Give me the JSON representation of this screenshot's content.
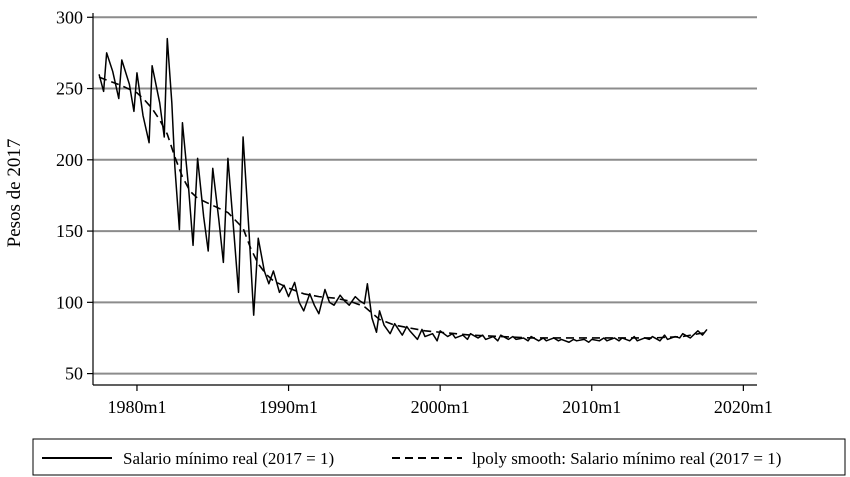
{
  "chart_data": {
    "type": "line",
    "title": "",
    "xlabel": "",
    "ylabel": "Pesos de 2017",
    "xlim": [
      1977.1,
      2020.9
    ],
    "ylim": [
      42,
      303
    ],
    "x_ticks": [
      1980,
      1990,
      2000,
      2010,
      2020
    ],
    "x_tick_labels": [
      "1980m1",
      "1990m1",
      "2000m1",
      "2010m1",
      "2020m1"
    ],
    "y_ticks": [
      50,
      100,
      150,
      200,
      250,
      300
    ],
    "y_tick_labels": [
      "50",
      "100",
      "150",
      "200",
      "250",
      "300"
    ],
    "grid": "horizontal",
    "legend_position": "bottom",
    "series": [
      {
        "name": "Salario mínimo real (2017 = 1)",
        "style": "solid",
        "color": "#000000",
        "x": [
          1977.5,
          1977.8,
          1978.0,
          1978.4,
          1978.8,
          1979.0,
          1979.5,
          1979.8,
          1980.0,
          1980.4,
          1980.8,
          1981.0,
          1981.5,
          1981.8,
          1982.0,
          1982.3,
          1982.5,
          1982.8,
          1983.0,
          1983.4,
          1983.7,
          1984.0,
          1984.4,
          1984.7,
          1985.0,
          1985.4,
          1985.7,
          1986.0,
          1986.4,
          1986.7,
          1987.0,
          1987.4,
          1987.7,
          1988.0,
          1988.4,
          1988.7,
          1989.0,
          1989.4,
          1989.7,
          1990.0,
          1990.4,
          1990.7,
          1991.0,
          1991.4,
          1991.7,
          1992.0,
          1992.4,
          1992.7,
          1993.0,
          1993.4,
          1993.7,
          1994.0,
          1994.4,
          1994.7,
          1995.0,
          1995.2,
          1995.5,
          1995.8,
          1996.0,
          1996.3,
          1996.7,
          1997.0,
          1997.5,
          1997.8,
          1998.0,
          1998.5,
          1998.8,
          1999.0,
          1999.5,
          1999.8,
          2000.0,
          2000.5,
          2000.8,
          2001.0,
          2001.5,
          2001.8,
          2002.0,
          2002.5,
          2002.8,
          2003.0,
          2003.5,
          2003.8,
          2004.0,
          2004.5,
          2004.8,
          2005.0,
          2005.5,
          2005.8,
          2006.0,
          2006.5,
          2006.8,
          2007.0,
          2007.5,
          2007.8,
          2008.0,
          2008.5,
          2008.8,
          2009.0,
          2009.5,
          2009.8,
          2010.0,
          2010.5,
          2010.8,
          2011.0,
          2011.5,
          2011.8,
          2012.0,
          2012.5,
          2012.8,
          2013.0,
          2013.5,
          2013.8,
          2014.0,
          2014.5,
          2014.8,
          2015.0,
          2015.5,
          2015.8,
          2016.0,
          2016.5,
          2016.8,
          2017.0,
          2017.3,
          2017.6
        ],
        "values": [
          260,
          248,
          275,
          262,
          243,
          270,
          253,
          234,
          261,
          231,
          212,
          266,
          240,
          216,
          285,
          240,
          195,
          151,
          226,
          181,
          140,
          201,
          160,
          136,
          194,
          158,
          128,
          201,
          148,
          107,
          216,
          148,
          91,
          145,
          122,
          113,
          122,
          107,
          112,
          104,
          114,
          100,
          94,
          106,
          98,
          92,
          109,
          100,
          98,
          105,
          101,
          98,
          104,
          101,
          99,
          113,
          89,
          79,
          94,
          84,
          78,
          85,
          77,
          83,
          80,
          74,
          81,
          76,
          78,
          73,
          80,
          76,
          78,
          75,
          77,
          74,
          78,
          75,
          77,
          74,
          76,
          73,
          77,
          74,
          76,
          74,
          75,
          73,
          76,
          73,
          75,
          73,
          75,
          73,
          74,
          72,
          74,
          73,
          74,
          72,
          74,
          73,
          75,
          73,
          75,
          73,
          75,
          73,
          76,
          73,
          75,
          74,
          76,
          73,
          77,
          74,
          76,
          75,
          78,
          75,
          78,
          80,
          77,
          81
        ]
      },
      {
        "name": "lpoly smooth: Salario mínimo real (2017 = 1)",
        "style": "dashed",
        "color": "#000000",
        "x": [
          1977.5,
          1978.0,
          1979.0,
          1980.0,
          1980.5,
          1981.0,
          1981.5,
          1982.0,
          1982.5,
          1983.0,
          1983.5,
          1984.0,
          1985.0,
          1986.0,
          1987.0,
          1987.5,
          1988.0,
          1988.5,
          1989.0,
          1990.0,
          1991.0,
          1992.0,
          1993.0,
          1994.0,
          1995.0,
          1996.0,
          1997.0,
          1998.0,
          1999.0,
          2000.0,
          2002.0,
          2004.0,
          2006.0,
          2008.0,
          2010.0,
          2012.0,
          2014.0,
          2016.0,
          2017.6
        ],
        "values": [
          258,
          256,
          252,
          247,
          242,
          236,
          228,
          218,
          202,
          188,
          178,
          173,
          168,
          163,
          152,
          138,
          127,
          120,
          115,
          110,
          106,
          104,
          103,
          101,
          97,
          88,
          84,
          82,
          80,
          79,
          77,
          76,
          75,
          75,
          75,
          75,
          75,
          76,
          79
        ]
      }
    ]
  }
}
